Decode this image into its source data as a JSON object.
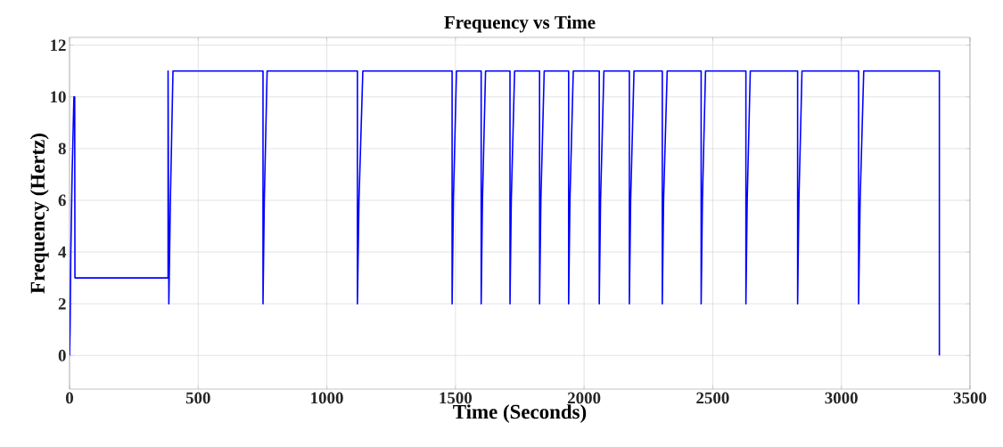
{
  "chart_data": {
    "type": "line",
    "title": "Frequency vs Time",
    "xlabel": "Time (Seconds)",
    "ylabel": "Frequency (Hertz)",
    "xlim": [
      0,
      3500
    ],
    "ylim": [
      -1.3,
      12.3
    ],
    "xticks": [
      0,
      500,
      1000,
      1500,
      2000,
      2500,
      3000,
      3500
    ],
    "yticks": [
      0,
      2,
      4,
      6,
      8,
      10,
      12
    ],
    "grid": true,
    "line_style": "solid",
    "series": [
      {
        "color": "#0000ff",
        "x": [
          0,
          2,
          5,
          10,
          17,
          20,
          21,
          383,
          383,
          386,
          392,
          402,
          752,
          752,
          757,
          768,
          1119,
          1119,
          1125,
          1140,
          1487,
          1487,
          1492,
          1504,
          1600,
          1600,
          1605,
          1617,
          1712,
          1712,
          1717,
          1730,
          1827,
          1827,
          1832,
          1845,
          1940,
          1940,
          1945,
          1958,
          2059,
          2059,
          2064,
          2077,
          2176,
          2176,
          2181,
          2194,
          2304,
          2304,
          2309,
          2323,
          2455,
          2455,
          2460,
          2472,
          2629,
          2629,
          2634,
          2646,
          2830,
          2830,
          2835,
          2847,
          3067,
          3067,
          3073,
          3087,
          3381,
          3381
        ],
        "values": [
          0,
          1,
          4,
          7,
          10,
          10,
          3,
          3,
          11,
          2,
          6,
          11,
          11,
          2,
          6,
          11,
          11,
          2,
          6,
          11,
          11,
          2,
          6,
          11,
          11,
          2,
          6,
          11,
          11,
          2,
          6,
          11,
          11,
          2,
          6,
          11,
          11,
          2,
          6,
          11,
          11,
          2,
          6,
          11,
          11,
          2,
          6,
          11,
          11,
          2,
          6,
          11,
          11,
          2,
          6,
          11,
          11,
          2,
          6,
          11,
          11,
          2,
          6,
          11,
          11,
          2,
          6,
          11,
          11,
          0
        ]
      }
    ]
  }
}
